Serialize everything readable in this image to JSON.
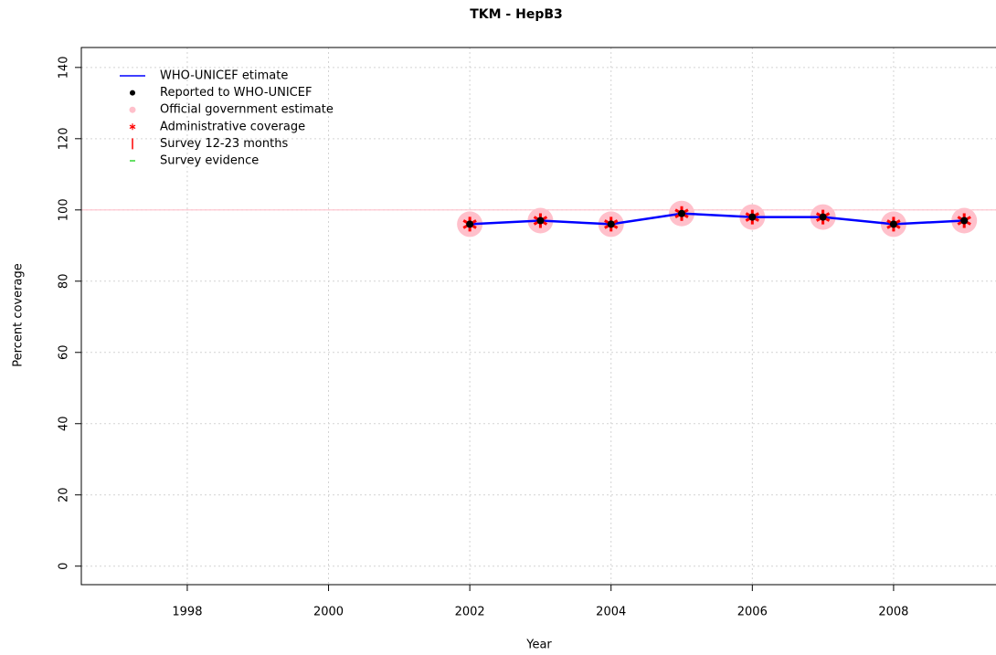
{
  "chart_data": {
    "type": "line",
    "title": "TKM  -  HepB3",
    "x_label": "Year",
    "y_label": "Percent coverage",
    "x": [
      2002,
      2003,
      2004,
      2005,
      2006,
      2007,
      2008,
      2009
    ],
    "series": [
      {
        "name": "WHO-UNICEF etimate",
        "color": "#0000ff",
        "marker": "line",
        "values": [
          96,
          97,
          96,
          99,
          98,
          98,
          96,
          97
        ]
      },
      {
        "name": "Reported to WHO-UNICEF",
        "color": "#000000",
        "marker": "dot",
        "values": [
          96,
          97,
          96,
          99,
          98,
          98,
          96,
          97
        ]
      },
      {
        "name": "Official government estimate",
        "color": "#ffc0cb",
        "marker": "circle",
        "values": [
          96,
          97,
          96,
          99,
          98,
          98,
          96,
          97
        ]
      },
      {
        "name": "Administrative coverage",
        "color": "#ff0000",
        "marker": "star",
        "values": [
          96,
          97,
          96,
          99,
          98,
          98,
          96,
          97
        ]
      },
      {
        "name": "Survey 12-23 months",
        "color": "#ff0000",
        "marker": "bar",
        "values": [
          null,
          null,
          null,
          null,
          null,
          null,
          null,
          null
        ]
      },
      {
        "name": "Survey evidence",
        "color": "#00cc00",
        "marker": "dash",
        "values": [
          null,
          null,
          null,
          null,
          null,
          null,
          null,
          null
        ]
      }
    ],
    "reference_line": 100,
    "reference_color": "#ffc0cb",
    "xlim": [
      1996.5,
      2009.45
    ],
    "xticks": [
      1998,
      2000,
      2002,
      2004,
      2006,
      2008
    ],
    "ylim": [
      -5.2,
      145.6
    ],
    "yticks": [
      0,
      20,
      40,
      60,
      80,
      100,
      120,
      140
    ],
    "grid": true,
    "legend": "top-left"
  }
}
